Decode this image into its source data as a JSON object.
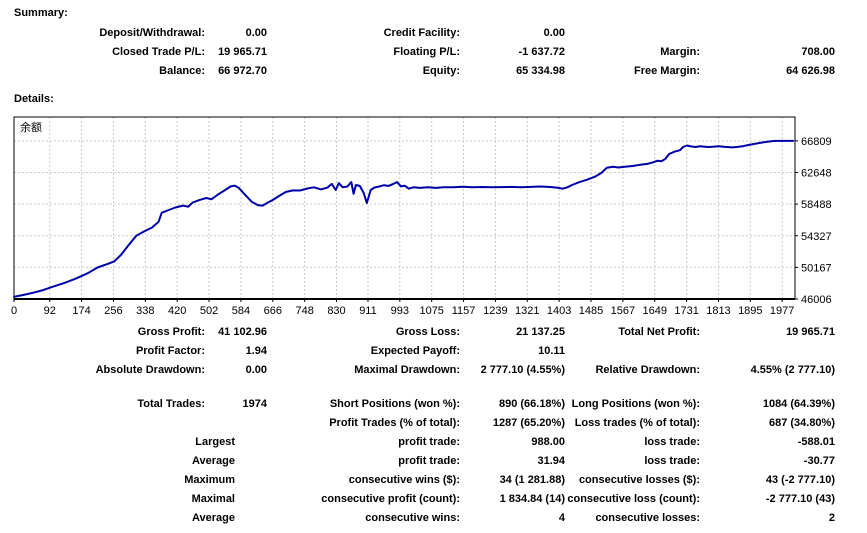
{
  "summary": {
    "heading": "Summary:",
    "rows": [
      [
        "Deposit/Withdrawal:",
        "0.00",
        "Credit Facility:",
        "0.00",
        "",
        ""
      ],
      [
        "Closed Trade P/L:",
        "19 965.71",
        "Floating P/L:",
        "-1 637.72",
        "Margin:",
        "708.00"
      ],
      [
        "Balance:",
        "66 972.70",
        "Equity:",
        "65 334.98",
        "Free Margin:",
        "64 626.98"
      ]
    ]
  },
  "details": {
    "heading": "Details:",
    "rows_top": [
      [
        "Gross Profit:",
        "41 102.96",
        "Gross Loss:",
        "21 137.25",
        "Total Net Profit:",
        "19 965.71"
      ],
      [
        "Profit Factor:",
        "1.94",
        "Expected Payoff:",
        "10.11",
        "",
        ""
      ],
      [
        "Absolute Drawdown:",
        "0.00",
        "Maximal Drawdown:",
        "2 777.10 (4.55%)",
        "Relative Drawdown:",
        "4.55% (2 777.10)"
      ]
    ],
    "rows_bottom": [
      [
        "Total Trades:",
        "1974",
        "Short Positions (won %):",
        "890 (66.18%)",
        "Long Positions (won %):",
        "1084 (64.39%)"
      ],
      [
        "",
        "",
        "Profit Trades (% of total):",
        "1287 (65.20%)",
        "Loss trades (% of total):",
        "687 (34.80%)"
      ],
      [
        "Largest",
        "",
        "profit trade:",
        "988.00",
        "loss trade:",
        "-588.01"
      ],
      [
        "Average",
        "",
        "profit trade:",
        "31.94",
        "loss trade:",
        "-30.77"
      ],
      [
        "Maximum",
        "",
        "consecutive wins ($):",
        "34 (1 281.88)",
        "consecutive losses ($):",
        "43 (-2 777.10)"
      ],
      [
        "Maximal",
        "",
        "consecutive profit (count):",
        "1 834.84 (14)",
        "consecutive loss (count):",
        "-2 777.10 (43)"
      ],
      [
        "Average",
        "",
        "consecutive wins:",
        "4",
        "consecutive losses:",
        "2"
      ]
    ]
  },
  "chart_data": {
    "type": "line",
    "title": "",
    "legend": "余额",
    "xlabel": "",
    "ylabel": "",
    "xlim": [
      0,
      2010
    ],
    "ylim": [
      46006,
      69950
    ],
    "x_ticks": [
      0,
      92,
      174,
      256,
      338,
      420,
      502,
      584,
      666,
      748,
      830,
      911,
      993,
      1075,
      1157,
      1239,
      1321,
      1403,
      1485,
      1567,
      1649,
      1731,
      1813,
      1895,
      1977
    ],
    "y_ticks": [
      46006,
      50167,
      54327,
      58488,
      62648,
      66809
    ],
    "grid": true,
    "legend_position": "top-left",
    "line_color": "#0000A8",
    "grid_color": "#c9c9c9",
    "axis_color": "#000000",
    "points": [
      [
        0,
        46290
      ],
      [
        25,
        46550
      ],
      [
        50,
        46840
      ],
      [
        75,
        47180
      ],
      [
        100,
        47630
      ],
      [
        130,
        48120
      ],
      [
        160,
        48720
      ],
      [
        190,
        49400
      ],
      [
        215,
        50150
      ],
      [
        240,
        50600
      ],
      [
        258,
        50950
      ],
      [
        275,
        51800
      ],
      [
        295,
        53100
      ],
      [
        315,
        54350
      ],
      [
        335,
        54900
      ],
      [
        355,
        55400
      ],
      [
        372,
        56150
      ],
      [
        380,
        57350
      ],
      [
        395,
        57650
      ],
      [
        415,
        58050
      ],
      [
        435,
        58300
      ],
      [
        448,
        58150
      ],
      [
        460,
        58700
      ],
      [
        478,
        59050
      ],
      [
        495,
        59300
      ],
      [
        508,
        59120
      ],
      [
        525,
        59750
      ],
      [
        542,
        60300
      ],
      [
        558,
        60820
      ],
      [
        568,
        60920
      ],
      [
        578,
        60650
      ],
      [
        595,
        59700
      ],
      [
        612,
        58800
      ],
      [
        628,
        58350
      ],
      [
        640,
        58300
      ],
      [
        652,
        58650
      ],
      [
        668,
        59100
      ],
      [
        684,
        59620
      ],
      [
        700,
        60100
      ],
      [
        718,
        60300
      ],
      [
        736,
        60280
      ],
      [
        755,
        60550
      ],
      [
        772,
        60700
      ],
      [
        790,
        60420
      ],
      [
        806,
        60650
      ],
      [
        818,
        61150
      ],
      [
        828,
        60350
      ],
      [
        836,
        61250
      ],
      [
        846,
        60700
      ],
      [
        858,
        60800
      ],
      [
        868,
        61380
      ],
      [
        874,
        59850
      ],
      [
        880,
        61000
      ],
      [
        890,
        60880
      ],
      [
        900,
        59950
      ],
      [
        908,
        58620
      ],
      [
        918,
        60350
      ],
      [
        928,
        60680
      ],
      [
        940,
        60800
      ],
      [
        952,
        60980
      ],
      [
        964,
        60880
      ],
      [
        976,
        61150
      ],
      [
        986,
        61380
      ],
      [
        996,
        60820
      ],
      [
        1006,
        60900
      ],
      [
        1016,
        60520
      ],
      [
        1028,
        60700
      ],
      [
        1045,
        60620
      ],
      [
        1065,
        60700
      ],
      [
        1085,
        60620
      ],
      [
        1105,
        60700
      ],
      [
        1130,
        60720
      ],
      [
        1155,
        60780
      ],
      [
        1180,
        60720
      ],
      [
        1205,
        60740
      ],
      [
        1230,
        60700
      ],
      [
        1255,
        60730
      ],
      [
        1280,
        60760
      ],
      [
        1305,
        60710
      ],
      [
        1330,
        60760
      ],
      [
        1355,
        60800
      ],
      [
        1380,
        60740
      ],
      [
        1400,
        60640
      ],
      [
        1412,
        60520
      ],
      [
        1424,
        60700
      ],
      [
        1436,
        61000
      ],
      [
        1455,
        61380
      ],
      [
        1475,
        61700
      ],
      [
        1495,
        62100
      ],
      [
        1512,
        62600
      ],
      [
        1526,
        63280
      ],
      [
        1542,
        63400
      ],
      [
        1556,
        63300
      ],
      [
        1572,
        63400
      ],
      [
        1592,
        63500
      ],
      [
        1612,
        63680
      ],
      [
        1632,
        63800
      ],
      [
        1646,
        64000
      ],
      [
        1656,
        64200
      ],
      [
        1666,
        64120
      ],
      [
        1676,
        64420
      ],
      [
        1686,
        65080
      ],
      [
        1700,
        65380
      ],
      [
        1714,
        65580
      ],
      [
        1722,
        66000
      ],
      [
        1732,
        66200
      ],
      [
        1742,
        66080
      ],
      [
        1754,
        66000
      ],
      [
        1766,
        66100
      ],
      [
        1778,
        66040
      ],
      [
        1790,
        66000
      ],
      [
        1802,
        66060
      ],
      [
        1814,
        66100
      ],
      [
        1826,
        66040
      ],
      [
        1838,
        65990
      ],
      [
        1850,
        65950
      ],
      [
        1862,
        66010
      ],
      [
        1876,
        66110
      ],
      [
        1890,
        66260
      ],
      [
        1904,
        66400
      ],
      [
        1918,
        66530
      ],
      [
        1932,
        66650
      ],
      [
        1946,
        66740
      ],
      [
        1960,
        66800
      ],
      [
        1977,
        66810
      ],
      [
        2005,
        66800
      ]
    ]
  },
  "colors": {
    "background": "#ffffff",
    "text": "#000000",
    "chart_line": "#0000A8",
    "gridline": "#c9c9c9"
  }
}
